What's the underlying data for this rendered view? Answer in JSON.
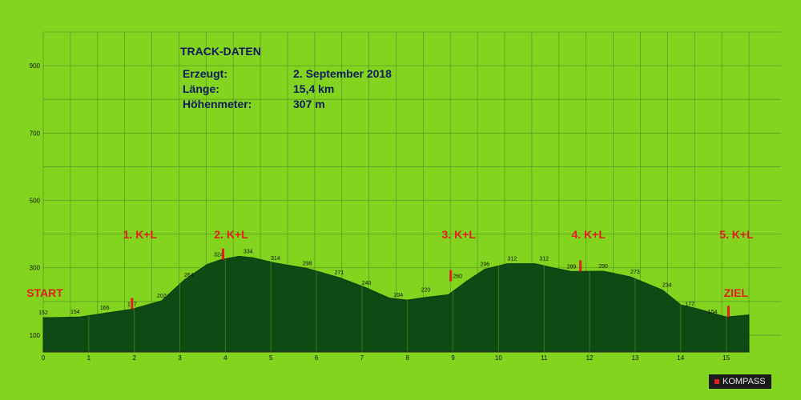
{
  "info": {
    "title": "TRACK-DATEN",
    "rows": [
      {
        "label": "Erzeugt:",
        "value": "2. September 2018"
      },
      {
        "label": "Länge:",
        "value": "15,4 km"
      },
      {
        "label": "Höhenmeter:",
        "value": "307 m"
      }
    ]
  },
  "logo": "KOMPASS",
  "colors": {
    "background": "#82d41f",
    "profile_fill": "#0e4a13",
    "grid": "#5e9a28",
    "marker": "#e31c1c",
    "info_text": "#101a5e"
  },
  "chart_data": {
    "type": "area",
    "xlabel": "",
    "ylabel": "",
    "xlim": [
      0,
      15.5
    ],
    "ylim": [
      50,
      1000
    ],
    "x_ticks": [
      0,
      1,
      2,
      3,
      4,
      5,
      6,
      7,
      8,
      9,
      10,
      11,
      12,
      13,
      14,
      15
    ],
    "y_ticks": [
      100,
      300,
      500,
      700,
      900
    ],
    "grid": true,
    "series": [
      {
        "x": [
          0,
          0.2,
          0.8,
          1.4,
          1.95,
          2.6,
          3.1,
          3.6,
          3.9,
          4.3,
          4.6,
          5.1,
          5.8,
          6.5,
          7.1,
          7.6,
          8.0,
          8.4,
          8.9,
          9.3,
          9.7,
          10.2,
          10.8,
          11.2,
          11.6,
          12.3,
          12.9,
          13.6,
          14.0,
          14.4,
          15.0,
          15.5
        ],
        "y": [
          152,
          152,
          154,
          166,
          177,
          202,
          264,
          310,
          324,
          334,
          330,
          314,
          298,
          271,
          240,
          210,
          204,
          212,
          220,
          260,
          296,
          312,
          312,
          300,
          289,
          290,
          273,
          234,
          190,
          177,
          154,
          160
        ]
      }
    ],
    "point_labels": [
      {
        "x": 0,
        "y": 152,
        "label": "152"
      },
      {
        "x": 0.7,
        "y": 154,
        "label": "154"
      },
      {
        "x": 1.35,
        "y": 166,
        "label": "166"
      },
      {
        "x": 1.95,
        "y": 177,
        "label": "177"
      },
      {
        "x": 2.6,
        "y": 202,
        "label": "202"
      },
      {
        "x": 3.2,
        "y": 264,
        "label": "264"
      },
      {
        "x": 3.85,
        "y": 324,
        "label": "324"
      },
      {
        "x": 4.5,
        "y": 334,
        "label": "334"
      },
      {
        "x": 5.1,
        "y": 314,
        "label": "314"
      },
      {
        "x": 5.8,
        "y": 298,
        "label": "298"
      },
      {
        "x": 6.5,
        "y": 271,
        "label": "271"
      },
      {
        "x": 7.1,
        "y": 240,
        "label": "240"
      },
      {
        "x": 7.8,
        "y": 204,
        "label": "204"
      },
      {
        "x": 8.4,
        "y": 220,
        "label": "220"
      },
      {
        "x": 9.1,
        "y": 260,
        "label": "260"
      },
      {
        "x": 9.7,
        "y": 296,
        "label": "296"
      },
      {
        "x": 10.3,
        "y": 312,
        "label": "312"
      },
      {
        "x": 11.0,
        "y": 312,
        "label": "312"
      },
      {
        "x": 11.6,
        "y": 289,
        "label": "289"
      },
      {
        "x": 12.3,
        "y": 290,
        "label": "290"
      },
      {
        "x": 13.0,
        "y": 273,
        "label": "273"
      },
      {
        "x": 13.7,
        "y": 234,
        "label": "234"
      },
      {
        "x": 14.2,
        "y": 177,
        "label": "177"
      },
      {
        "x": 14.7,
        "y": 154,
        "label": "154"
      }
    ],
    "markers": [
      {
        "label": "START",
        "x": 0.5,
        "pin": false
      },
      {
        "label": "1. K+L",
        "x": 1.95,
        "pin": true,
        "pin_y": 177
      },
      {
        "label": "2. K+L",
        "x": 3.95,
        "pin": true,
        "pin_y": 324
      },
      {
        "label": "3. K+L",
        "x": 8.95,
        "pin": true,
        "pin_y": 260
      },
      {
        "label": "4. K+L",
        "x": 11.8,
        "pin": true,
        "pin_y": 289
      },
      {
        "label": "5. K+L",
        "x": 15.05,
        "pin": true,
        "pin_y": 154
      },
      {
        "label": "ZIEL",
        "x": 15.3,
        "pin": false
      }
    ]
  }
}
